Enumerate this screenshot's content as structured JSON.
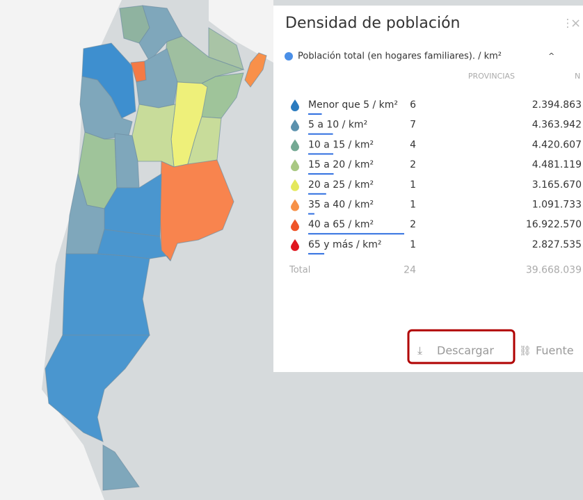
{
  "panel": {
    "title": "Densidad de población",
    "variable": "Población total (en hogares familiares). / km²",
    "columns": [
      "PROVINCIAS",
      "N"
    ],
    "rows": [
      {
        "label": "Menor que 5 / km²",
        "count": "6",
        "value": "2.394.863",
        "color": "#2b7bbf"
      },
      {
        "label": "5 a 10 / km²",
        "count": "7",
        "value": "4.363.942",
        "color": "#5b91ad"
      },
      {
        "label": "10 a 15 / km²",
        "count": "4",
        "value": "4.420.607",
        "color": "#74a993"
      },
      {
        "label": "15 a 20 / km²",
        "count": "2",
        "value": "4.481.119",
        "color": "#a9c883"
      },
      {
        "label": "20 a 25 / km²",
        "count": "1",
        "value": "3.165.670",
        "color": "#e4e85c"
      },
      {
        "label": "35 a 40 / km²",
        "count": "1",
        "value": "1.091.733",
        "color": "#f79148"
      },
      {
        "label": "40 a 65 / km²",
        "count": "2",
        "value": "16.922.570",
        "color": "#ef5428"
      },
      {
        "label": "65 y más / km²",
        "count": "1",
        "value": "2.827.535",
        "color": "#e0161f"
      }
    ],
    "total": {
      "label": "Total",
      "count": "24",
      "value": "39.668.039"
    },
    "buttons": [
      "Descargar",
      "Fuente"
    ]
  }
}
